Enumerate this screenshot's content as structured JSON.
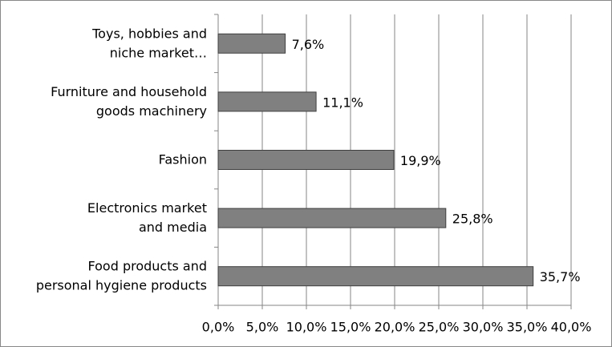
{
  "chart_data": {
    "type": "bar",
    "orientation": "horizontal",
    "categories": [
      "Toys, hobbies and\nniche market…",
      "Furniture and household\ngoods machinery",
      "Fashion",
      "Electronics market\nand media",
      "Food products and\npersonal hygiene products"
    ],
    "values": [
      7.6,
      11.1,
      19.9,
      25.8,
      35.7
    ],
    "value_labels": [
      "7,6%",
      "11,1%",
      "19,9%",
      "25,8%",
      "35,7%"
    ],
    "color": "#808080",
    "xlim": [
      0,
      40
    ],
    "xticks": [
      {
        "value": 0,
        "label": "0,0%"
      },
      {
        "value": 5,
        "label": "5,0%"
      },
      {
        "value": 10,
        "label": "10,0%"
      },
      {
        "value": 15,
        "label": "15,0%"
      },
      {
        "value": 20,
        "label": "20,0%"
      },
      {
        "value": 25,
        "label": "25,0%"
      },
      {
        "value": 30,
        "label": "30,0%"
      },
      {
        "value": 35,
        "label": "35,0%"
      },
      {
        "value": 40,
        "label": "40,0%"
      }
    ],
    "grid": true
  }
}
